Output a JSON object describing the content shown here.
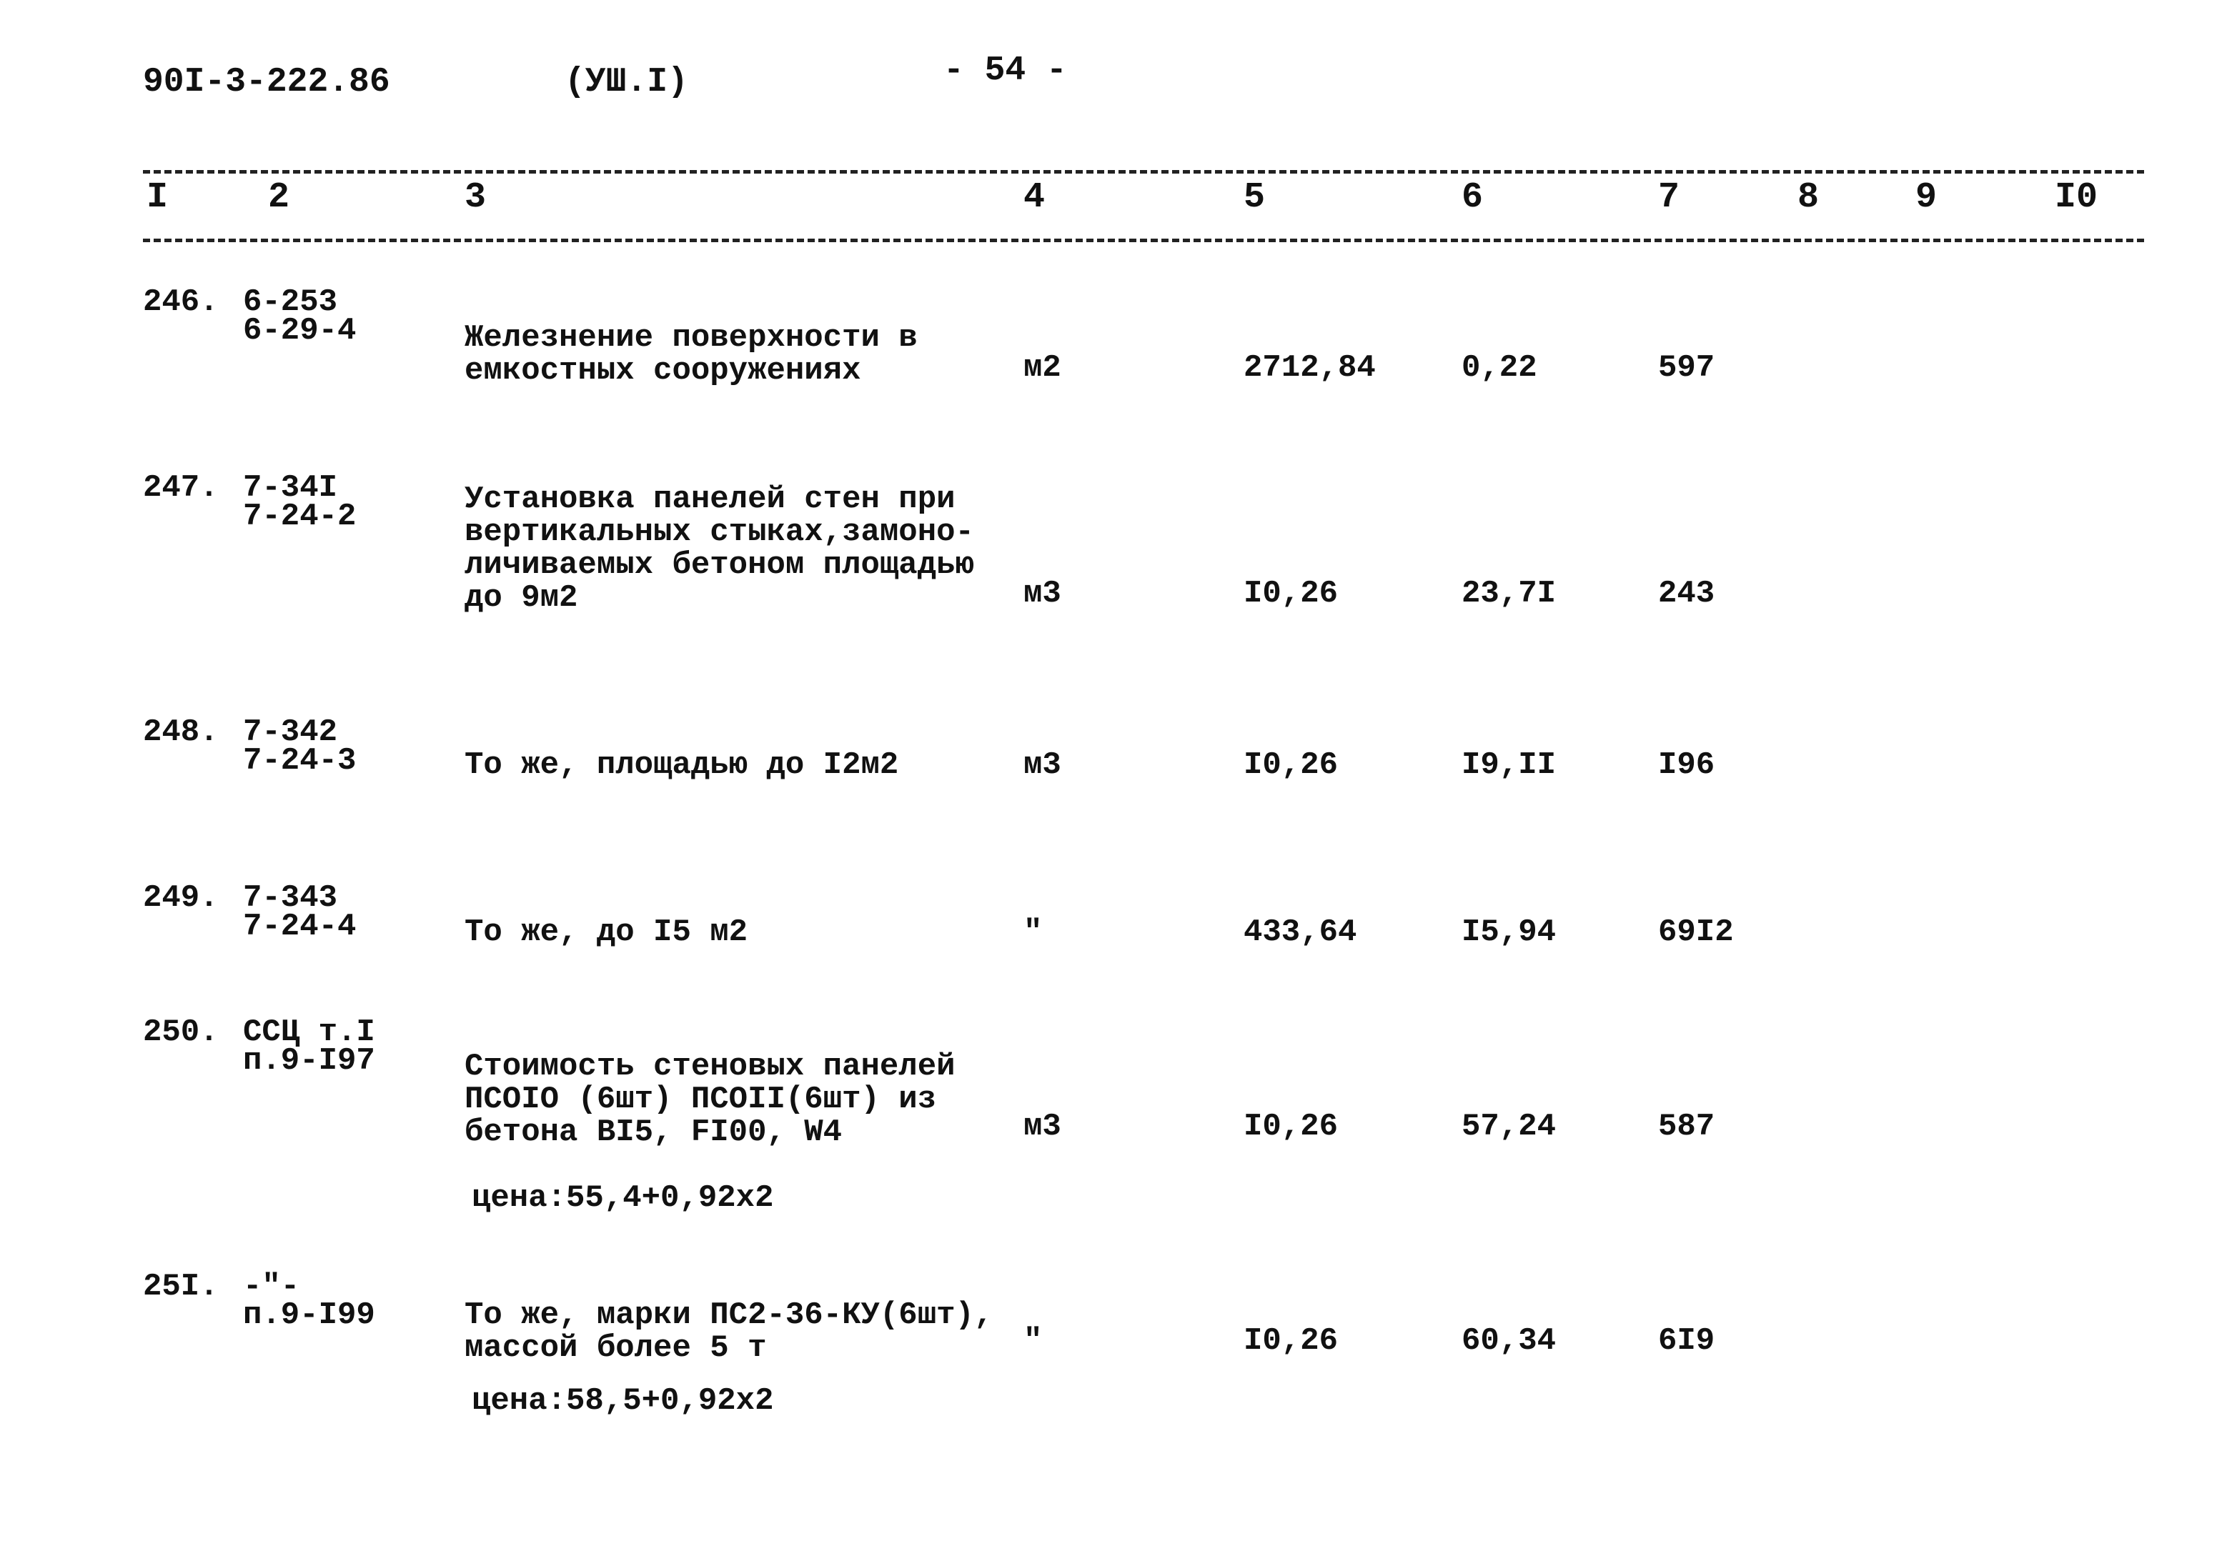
{
  "header": {
    "doc_code": "90I-3-222.86",
    "section": "(УШ.I)",
    "page": "- 54 -"
  },
  "columns": [
    "I",
    "2",
    "3",
    "4",
    "5",
    "6",
    "7",
    "8",
    "9",
    "I0"
  ],
  "rows": [
    {
      "num": "246.",
      "code": [
        "6-253",
        "6-29-4"
      ],
      "desc": [
        "Железнение поверхности в",
        "емкостных сооружениях"
      ],
      "unit": "м2",
      "qty": "2712,84",
      "price": "0,22",
      "total": "597",
      "note": ""
    },
    {
      "num": "247.",
      "code": [
        "7-34I",
        "7-24-2"
      ],
      "desc": [
        "Установка панелей стен при",
        "вертикальных стыках,замоно-",
        "личиваемых бетоном площадью",
        "до 9м2"
      ],
      "unit": "м3",
      "qty": "I0,26",
      "price": "23,7I",
      "total": "243",
      "note": ""
    },
    {
      "num": "248.",
      "code": [
        "7-342",
        "7-24-3"
      ],
      "desc": [
        "То же, площадью до I2м2"
      ],
      "unit": "м3",
      "qty": "I0,26",
      "price": "I9,II",
      "total": "I96",
      "note": ""
    },
    {
      "num": "249.",
      "code": [
        "7-343",
        "7-24-4"
      ],
      "desc": [
        "То же, до I5 м2"
      ],
      "unit": "\"",
      "qty": "433,64",
      "price": "I5,94",
      "total": "69I2",
      "note": ""
    },
    {
      "num": "250.",
      "code": [
        "ССЦ т.I",
        "п.9-I97"
      ],
      "desc": [
        "Стоимость стеновых панелей",
        "ПСОIO (6шт) ПСОII(6шт) из",
        "бетона BI5, FI00, W4"
      ],
      "unit": "м3",
      "qty": "I0,26",
      "price": "57,24",
      "total": "587",
      "note": "цена:55,4+0,92х2"
    },
    {
      "num": "25I.",
      "code": [
        "-\"-",
        "п.9-I99"
      ],
      "desc": [
        "То же, марки ПС2-36-КУ(6шт),",
        "массой более 5 т"
      ],
      "unit": "\"",
      "qty": "I0,26",
      "price": "60,34",
      "total": "6I9",
      "note": "цена:58,5+0,92х2"
    }
  ]
}
